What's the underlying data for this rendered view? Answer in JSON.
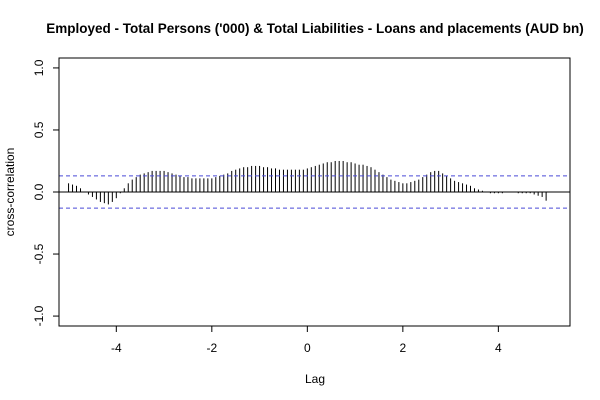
{
  "chart_data": {
    "type": "bar",
    "title": "Employed - Total Persons ('000) & Total Liabilities - Loans and placements (AUD bn)",
    "xlabel": "Lag",
    "ylabel": "cross-correlation",
    "xlim": [
      -5.2,
      5.5
    ],
    "ylim": [
      -1.08,
      1.08
    ],
    "x_ticks": [
      -4,
      -2,
      0,
      2,
      4
    ],
    "y_ticks": [
      -1.0,
      -0.5,
      0.0,
      0.5,
      1.0
    ],
    "x_tick_labels": [
      "-4",
      "-2",
      "0",
      "2",
      "4"
    ],
    "y_tick_labels": [
      "-1.0",
      "-0.5",
      "0.0",
      "0.5",
      "1.0"
    ],
    "confidence_bound": 0.13,
    "confidence_color": "#4a4ad8",
    "bar_color": "#000000",
    "grid": false,
    "series": [
      {
        "x": [
          -5.0,
          -4.9167,
          -4.8333,
          -4.75,
          -4.6667,
          -4.5833,
          -4.5,
          -4.4167,
          -4.3333,
          -4.25,
          -4.1667,
          -4.0833,
          -4.0,
          -3.9167,
          -3.8333,
          -3.75,
          -3.6667,
          -3.5833,
          -3.5,
          -3.4167,
          -3.3333,
          -3.25,
          -3.1667,
          -3.0833,
          -3.0,
          -2.9167,
          -2.8333,
          -2.75,
          -2.6667,
          -2.5833,
          -2.5,
          -2.4167,
          -2.3333,
          -2.25,
          -2.1667,
          -2.0833,
          -2.0,
          -1.9167,
          -1.8333,
          -1.75,
          -1.6667,
          -1.5833,
          -1.5,
          -1.4167,
          -1.3333,
          -1.25,
          -1.1667,
          -1.0833,
          -1.0,
          -0.9167,
          -0.8333,
          -0.75,
          -0.6667,
          -0.5833,
          -0.5,
          -0.4167,
          -0.3333,
          -0.25,
          -0.1667,
          -0.0833,
          0.0,
          0.0833,
          0.1667,
          0.25,
          0.3333,
          0.4167,
          0.5,
          0.5833,
          0.6667,
          0.75,
          0.8333,
          0.9167,
          1.0,
          1.0833,
          1.1667,
          1.25,
          1.3333,
          1.4167,
          1.5,
          1.5833,
          1.6667,
          1.75,
          1.8333,
          1.9167,
          2.0,
          2.0833,
          2.1667,
          2.25,
          2.3333,
          2.4167,
          2.5,
          2.5833,
          2.6667,
          2.75,
          2.8333,
          2.9167,
          3.0,
          3.0833,
          3.1667,
          3.25,
          3.3333,
          3.4167,
          3.5,
          3.5833,
          3.6667,
          3.75,
          3.8333,
          3.9167,
          4.0,
          4.0833,
          4.1667,
          4.25,
          4.3333,
          4.4167,
          4.5,
          4.5833,
          4.6667,
          4.75,
          4.8333,
          4.9167,
          5.0
        ],
        "values": [
          0.07,
          0.06,
          0.05,
          0.03,
          0.0,
          -0.02,
          -0.04,
          -0.06,
          -0.08,
          -0.09,
          -0.1,
          -0.08,
          -0.05,
          -0.01,
          0.03,
          0.07,
          0.1,
          0.12,
          0.14,
          0.15,
          0.16,
          0.17,
          0.17,
          0.17,
          0.17,
          0.16,
          0.15,
          0.14,
          0.13,
          0.12,
          0.12,
          0.11,
          0.11,
          0.11,
          0.11,
          0.11,
          0.11,
          0.12,
          0.13,
          0.14,
          0.15,
          0.17,
          0.18,
          0.19,
          0.2,
          0.2,
          0.21,
          0.21,
          0.21,
          0.2,
          0.2,
          0.19,
          0.19,
          0.18,
          0.18,
          0.18,
          0.18,
          0.18,
          0.18,
          0.18,
          0.19,
          0.2,
          0.21,
          0.22,
          0.23,
          0.24,
          0.24,
          0.25,
          0.25,
          0.25,
          0.24,
          0.24,
          0.23,
          0.22,
          0.22,
          0.21,
          0.2,
          0.18,
          0.16,
          0.14,
          0.12,
          0.1,
          0.09,
          0.08,
          0.07,
          0.07,
          0.08,
          0.09,
          0.1,
          0.12,
          0.14,
          0.16,
          0.17,
          0.17,
          0.15,
          0.13,
          0.11,
          0.09,
          0.08,
          0.07,
          0.06,
          0.05,
          0.03,
          0.02,
          0.01,
          0.0,
          -0.01,
          -0.01,
          -0.01,
          -0.01,
          0.0,
          0.0,
          0.0,
          -0.01,
          -0.01,
          -0.01,
          -0.01,
          -0.02,
          -0.03,
          -0.04,
          -0.07
        ]
      }
    ]
  }
}
